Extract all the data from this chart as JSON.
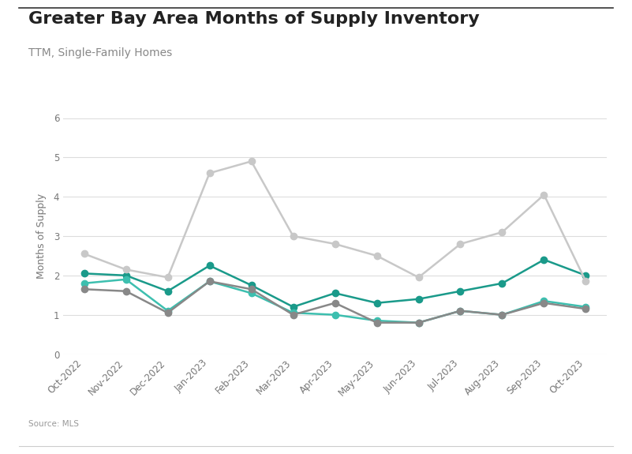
{
  "title": "Greater Bay Area Months of Supply Inventory",
  "subtitle": "TTM, Single-Family Homes",
  "source": "Source: MLS",
  "ylabel": "Months of Supply",
  "months": [
    "Oct-2022",
    "Nov-2022",
    "Dec-2022",
    "Jan-2023",
    "Feb-2023",
    "Mar-2023",
    "Apr-2023",
    "May-2023",
    "Jun-2023",
    "Jul-2023",
    "Aug-2023",
    "Sep-2023",
    "Oct-2023"
  ],
  "series": {
    "North Bay": {
      "values": [
        2.05,
        2.0,
        1.6,
        2.25,
        1.75,
        1.2,
        1.55,
        1.3,
        1.4,
        1.6,
        1.8,
        2.4,
        2.0
      ],
      "color": "#1a9a8a",
      "marker": "o",
      "marker_size": 6,
      "linewidth": 1.8
    },
    "East Bay": {
      "values": [
        1.8,
        1.9,
        1.1,
        1.85,
        1.55,
        1.05,
        1.0,
        0.85,
        0.8,
        1.1,
        1.0,
        1.35,
        1.2
      ],
      "color": "#3dbfaf",
      "marker": "o",
      "marker_size": 6,
      "linewidth": 1.8
    },
    "Silicon Valley": {
      "values": [
        1.65,
        1.6,
        1.05,
        1.85,
        1.65,
        1.0,
        1.3,
        0.8,
        0.8,
        1.1,
        1.0,
        1.3,
        1.15
      ],
      "color": "#888888",
      "marker": "o",
      "marker_size": 6,
      "linewidth": 1.8
    },
    "San Francisco": {
      "values": [
        2.55,
        2.15,
        1.95,
        4.6,
        4.9,
        3.0,
        2.8,
        2.5,
        1.95,
        2.8,
        3.1,
        4.05,
        1.85
      ],
      "color": "#c8c8c8",
      "marker": "o",
      "marker_size": 6,
      "linewidth": 1.8
    }
  },
  "ylim": [
    0,
    6
  ],
  "yticks": [
    0,
    1,
    2,
    3,
    4,
    5,
    6
  ],
  "background_color": "#ffffff",
  "grid_color": "#dddddd",
  "title_fontsize": 16,
  "subtitle_fontsize": 10,
  "tick_fontsize": 8.5,
  "ylabel_fontsize": 9,
  "legend_fontsize": 9.5,
  "source_fontsize": 7.5,
  "border_color": "#aaaaaa"
}
